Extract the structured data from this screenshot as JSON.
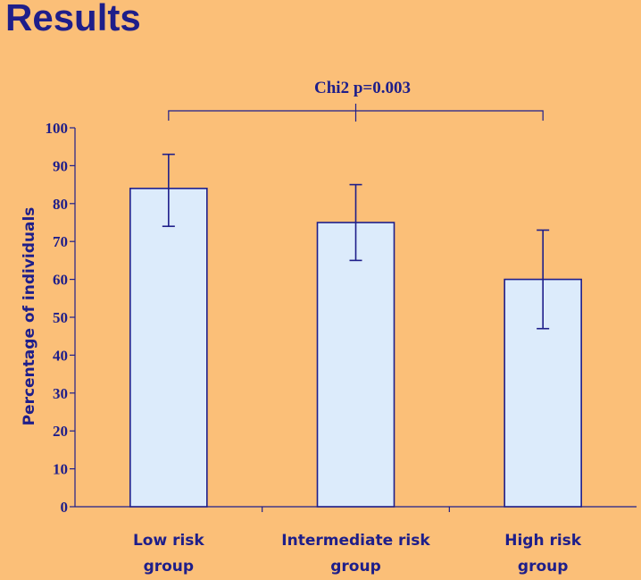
{
  "page": {
    "title": "Results"
  },
  "colors": {
    "background": "#FBBF78",
    "bar_fill": "#DCEBFB",
    "ink": "#1E1E8A"
  },
  "chart_data": {
    "type": "bar",
    "categories": [
      [
        "Low risk",
        "group"
      ],
      [
        "Intermediate risk",
        "group"
      ],
      [
        "High risk",
        "group"
      ]
    ],
    "values": [
      84,
      75,
      60
    ],
    "error_low": [
      74,
      65,
      47
    ],
    "error_high": [
      93,
      85,
      73
    ],
    "ylabel": "Percentage of individuals",
    "ylim": [
      0,
      100
    ],
    "yticks": [
      0,
      10,
      20,
      30,
      40,
      50,
      60,
      70,
      80,
      90,
      100
    ],
    "annotation": "Chi2 p=0.003",
    "grid": false,
    "legend": "none"
  }
}
